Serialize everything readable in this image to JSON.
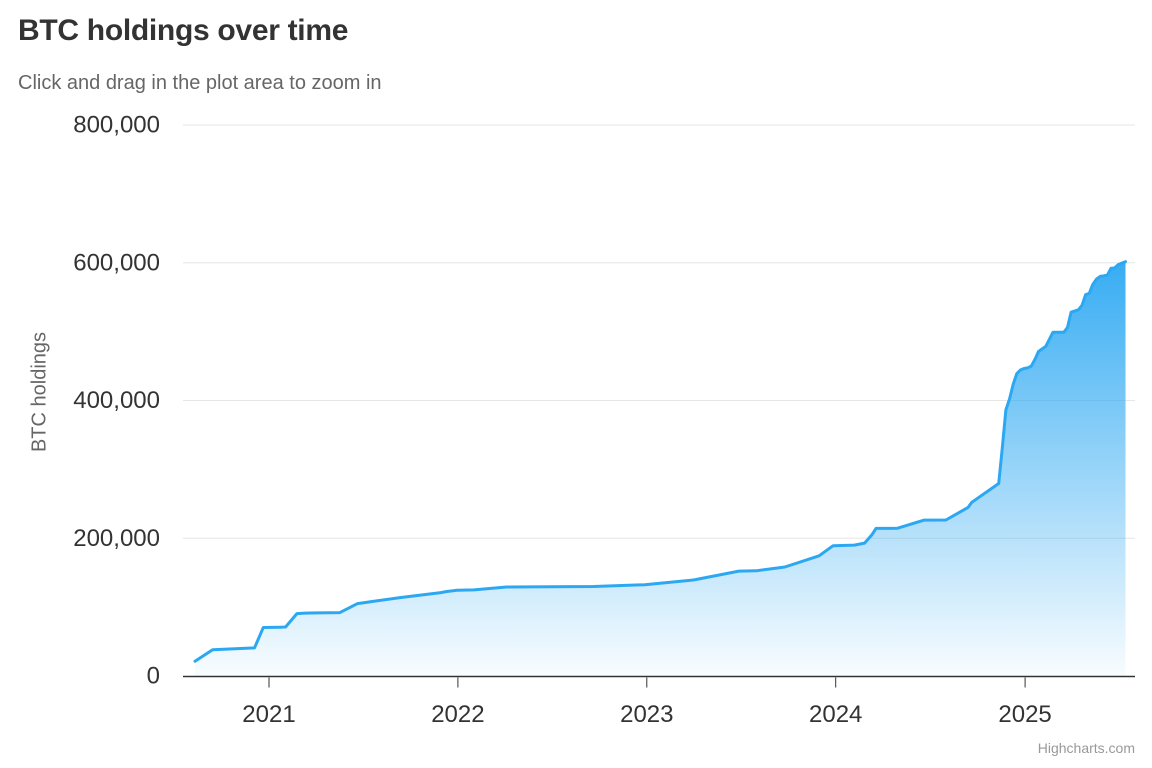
{
  "header": {
    "title": "BTC holdings over time",
    "subtitle": "Click and drag in the plot area to zoom in"
  },
  "credits": {
    "label": "Highcharts.com"
  },
  "chart_data": {
    "type": "area",
    "title": "BTC holdings over time",
    "subtitle": "Click and drag in the plot area to zoom in",
    "xlabel": "",
    "ylabel": "BTC holdings",
    "ylim": [
      0,
      800000
    ],
    "yticks": [
      0,
      200000,
      400000,
      600000,
      800000
    ],
    "ytick_labels": [
      "0",
      "200,000",
      "400,000",
      "600,000",
      "800,000"
    ],
    "xtick_years": [
      "2021",
      "2022",
      "2023",
      "2024",
      "2025"
    ],
    "grid": true,
    "legend": false,
    "colors": {
      "line": "#2CA8F2",
      "fill_top": "rgba(44,168,242,0.95)",
      "fill_bottom": "rgba(44,168,242,0.03)",
      "grid": "#e6e6e6",
      "axis_line": "#333333",
      "tick": "#333333",
      "axis_label": "#333333",
      "axis_title": "#666666",
      "title": "#333333",
      "subtitle": "#666666",
      "credits": "#999999"
    },
    "series": [
      {
        "name": "BTC holdings",
        "points": [
          [
            "2020-08-11",
            21454
          ],
          [
            "2020-09-14",
            38250
          ],
          [
            "2020-12-04",
            40824
          ],
          [
            "2020-12-21",
            70470
          ],
          [
            "2021-01-22",
            70784
          ],
          [
            "2021-02-02",
            71079
          ],
          [
            "2021-02-24",
            90531
          ],
          [
            "2021-03-12",
            91326
          ],
          [
            "2021-04-05",
            91579
          ],
          [
            "2021-05-18",
            92079
          ],
          [
            "2021-06-21",
            105085
          ],
          [
            "2021-07-28",
            108992
          ],
          [
            "2021-09-13",
            114042
          ],
          [
            "2021-11-29",
            121044
          ],
          [
            "2021-12-09",
            122478
          ],
          [
            "2021-12-30",
            124391
          ],
          [
            "2022-02-01",
            125051
          ],
          [
            "2022-04-05",
            129218
          ],
          [
            "2022-06-29",
            129699
          ],
          [
            "2022-09-20",
            130000
          ],
          [
            "2022-12-28",
            132500
          ],
          [
            "2023-03-27",
            138955
          ],
          [
            "2023-04-05",
            140000
          ],
          [
            "2023-06-28",
            152333
          ],
          [
            "2023-07-31",
            152800
          ],
          [
            "2023-09-25",
            158245
          ],
          [
            "2023-11-30",
            174530
          ],
          [
            "2023-12-27",
            189150
          ],
          [
            "2024-02-06",
            190000
          ],
          [
            "2024-02-26",
            193000
          ],
          [
            "2024-03-11",
            205000
          ],
          [
            "2024-03-19",
            214246
          ],
          [
            "2024-04-29",
            214400
          ],
          [
            "2024-06-20",
            226331
          ],
          [
            "2024-08-01",
            226500
          ],
          [
            "2024-09-13",
            244800
          ],
          [
            "2024-09-20",
            252220
          ],
          [
            "2024-11-11",
            279420
          ],
          [
            "2024-11-18",
            331200
          ],
          [
            "2024-11-25",
            386700
          ],
          [
            "2024-12-02",
            402100
          ],
          [
            "2024-12-09",
            423650
          ],
          [
            "2024-12-16",
            439000
          ],
          [
            "2024-12-23",
            444262
          ],
          [
            "2024-12-30",
            446400
          ],
          [
            "2025-01-06",
            447470
          ],
          [
            "2025-01-13",
            450000
          ],
          [
            "2025-01-21",
            461000
          ],
          [
            "2025-01-27",
            471107
          ],
          [
            "2025-02-10",
            478740
          ],
          [
            "2025-02-24",
            499096
          ],
          [
            "2025-03-17",
            499226
          ],
          [
            "2025-03-24",
            506137
          ],
          [
            "2025-03-31",
            528185
          ],
          [
            "2025-04-14",
            531644
          ],
          [
            "2025-04-21",
            538200
          ],
          [
            "2025-04-28",
            553555
          ],
          [
            "2025-05-05",
            555450
          ],
          [
            "2025-05-12",
            568840
          ],
          [
            "2025-05-19",
            576230
          ],
          [
            "2025-05-26",
            580250
          ],
          [
            "2025-06-02",
            580955
          ],
          [
            "2025-06-09",
            582000
          ],
          [
            "2025-06-16",
            592100
          ],
          [
            "2025-06-23",
            592345
          ],
          [
            "2025-06-30",
            597325
          ],
          [
            "2025-07-14",
            601550
          ]
        ]
      }
    ]
  }
}
